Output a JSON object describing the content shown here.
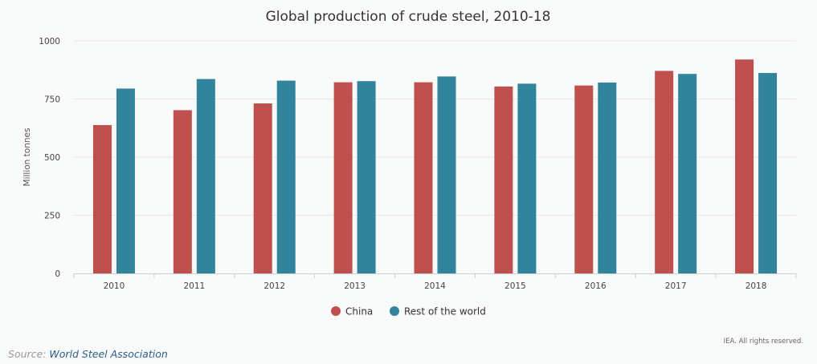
{
  "chart_data": {
    "type": "bar",
    "title": "Global production of crude steel, 2010-18",
    "xlabel": "",
    "ylabel": "Million tonnes",
    "ylim": [
      0,
      1000
    ],
    "yticks": [
      0,
      250,
      500,
      750,
      1000
    ],
    "categories": [
      "2010",
      "2011",
      "2012",
      "2013",
      "2014",
      "2015",
      "2016",
      "2017",
      "2018"
    ],
    "series": [
      {
        "name": "China",
        "color": "#c0504d",
        "values": [
          638,
          702,
          731,
          822,
          822,
          804,
          808,
          871,
          920
        ]
      },
      {
        "name": "Rest of the world",
        "color": "#31849b",
        "values": [
          795,
          836,
          829,
          827,
          847,
          816,
          821,
          858,
          862
        ]
      }
    ],
    "grid": true,
    "legend_position": "bottom-center"
  },
  "footer": {
    "rights": "IEA. All rights reserved.",
    "source_label": "Source:",
    "source_link": "World Steel Association"
  }
}
